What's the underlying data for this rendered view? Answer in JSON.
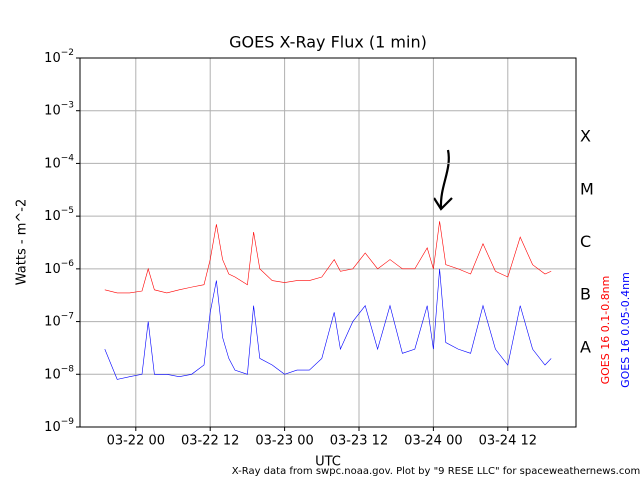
{
  "chart_data": {
    "type": "line",
    "title": "GOES X-Ray Flux (1 min)",
    "xlabel": "UTC",
    "ylabel": "Watts - m^-2",
    "footer": "X-Ray data from swpc.noaa.gov. Plot by \"9 RESE LLC\" for spaceweathernews.com",
    "flare_classes": [
      "X",
      "M",
      "C",
      "B",
      "A"
    ],
    "log_y": true,
    "grid": true,
    "ylim": [
      1e-09,
      0.01
    ],
    "yticks": [
      {
        "value": 0.01,
        "label": "10−2"
      },
      {
        "value": 0.001,
        "label": "10−3"
      },
      {
        "value": 0.0001,
        "label": "10−4"
      },
      {
        "value": 1e-05,
        "label": "10−5"
      },
      {
        "value": 1e-06,
        "label": "10−6"
      },
      {
        "value": 1e-07,
        "label": "10−7"
      },
      {
        "value": 1e-08,
        "label": "10−8"
      },
      {
        "value": 1e-09,
        "label": "10−9"
      }
    ],
    "xlim": [
      "03-21 15",
      "03-24 23"
    ],
    "xticks": [
      "03-22 00",
      "03-22 12",
      "03-23 00",
      "03-23 12",
      "03-24 00",
      "03-24 12"
    ],
    "x": [
      "03-21 19",
      "03-21 21",
      "03-21 23",
      "03-22 01",
      "03-22 02",
      "03-22 03",
      "03-22 05",
      "03-22 07",
      "03-22 09",
      "03-22 11",
      "03-22 12",
      "03-22 13",
      "03-22 14",
      "03-22 15",
      "03-22 16",
      "03-22 18",
      "03-22 19",
      "03-22 20",
      "03-22 22",
      "03-23 00",
      "03-23 02",
      "03-23 04",
      "03-23 06",
      "03-23 08",
      "03-23 09",
      "03-23 11",
      "03-23 13",
      "03-23 15",
      "03-23 17",
      "03-23 19",
      "03-23 21",
      "03-23 23",
      "03-24 00",
      "03-24 01",
      "03-24 02",
      "03-24 04",
      "03-24 06",
      "03-24 08",
      "03-24 10",
      "03-24 12",
      "03-24 14",
      "03-24 16",
      "03-24 18",
      "03-24 19"
    ],
    "series": [
      {
        "name": "GOES 16 0.1-0.8nm",
        "color": "#ff0000",
        "values": [
          4e-07,
          3.5e-07,
          3.5e-07,
          3.8e-07,
          1e-06,
          4e-07,
          3.5e-07,
          4e-07,
          4.5e-07,
          5e-07,
          1.5e-06,
          7e-06,
          1.5e-06,
          8e-07,
          7e-07,
          5e-07,
          5e-06,
          1e-06,
          6e-07,
          5.5e-07,
          6e-07,
          6e-07,
          7e-07,
          1.5e-06,
          9e-07,
          1e-06,
          2e-06,
          1e-06,
          1.5e-06,
          1e-06,
          1e-06,
          2.5e-06,
          1e-06,
          8e-06,
          1.2e-06,
          1e-06,
          8e-07,
          3e-06,
          9e-07,
          7e-07,
          4e-06,
          1.2e-06,
          8e-07,
          9e-07
        ]
      },
      {
        "name": "GOES 16 0.05-0.4nm",
        "color": "#0000ff",
        "values": [
          3e-08,
          8e-09,
          9e-09,
          1e-08,
          1e-07,
          1e-08,
          1e-08,
          9e-09,
          1e-08,
          1.5e-08,
          1.5e-07,
          6e-07,
          5e-08,
          2e-08,
          1.2e-08,
          1e-08,
          2e-07,
          2e-08,
          1.5e-08,
          1e-08,
          1.2e-08,
          1.2e-08,
          2e-08,
          1.5e-07,
          3e-08,
          1e-07,
          2e-07,
          3e-08,
          2e-07,
          2.5e-08,
          3e-08,
          2e-07,
          3e-08,
          1e-06,
          4e-08,
          3e-08,
          2.5e-08,
          2e-07,
          3e-08,
          1.5e-08,
          2e-07,
          3e-08,
          1.5e-08,
          2e-08
        ]
      }
    ]
  }
}
